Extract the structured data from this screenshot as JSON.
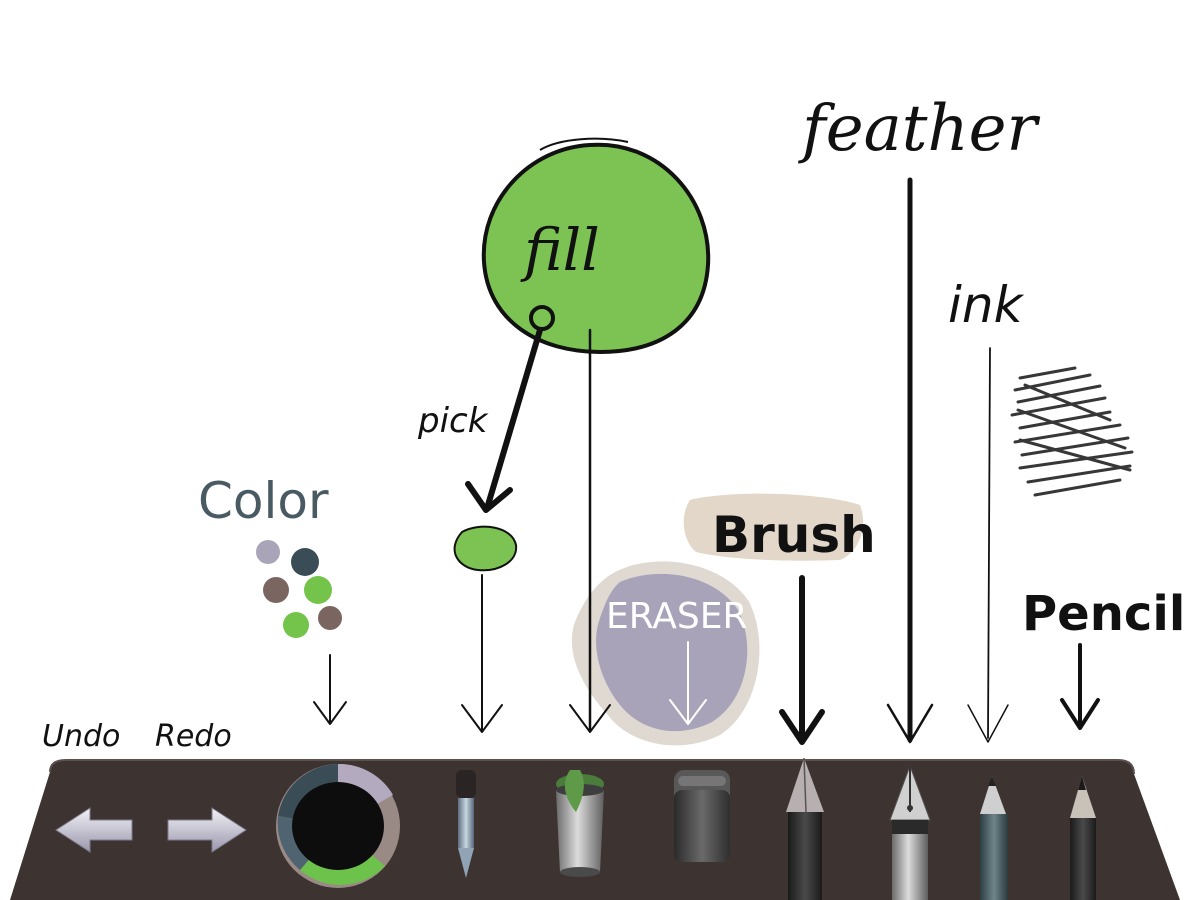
{
  "annotations": {
    "undo": "Undo",
    "redo": "Redo",
    "color": "Color",
    "pick": "pick",
    "fill": "fill",
    "eraser": "ERASER",
    "brush": "Brush",
    "feather": "feather",
    "ink": "ink",
    "pencil": "Pencil"
  },
  "colors": {
    "toolbar_bg": "#3d3432",
    "fill_green": "#7dc353",
    "swatch_lavender": "#aaa4b9",
    "swatch_slate": "#3a4d57",
    "swatch_brown": "#7b6560",
    "swatch_green": "#74c34b",
    "eraser_blob": "#a9a3ba",
    "brush_beige": "#e2d7c8",
    "color_label": "#495a63"
  },
  "toolbar": {
    "tools": [
      "undo",
      "redo",
      "color",
      "pick",
      "fill",
      "eraser",
      "brush",
      "feather",
      "ink",
      "pencil"
    ]
  }
}
